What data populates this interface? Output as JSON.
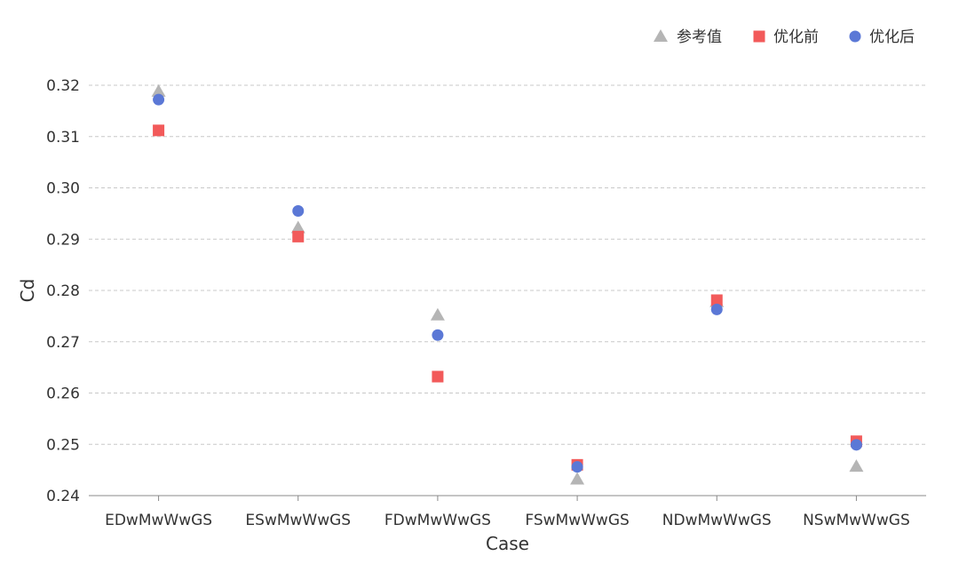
{
  "chart_data": {
    "type": "scatter",
    "title": "",
    "xlabel": "Case",
    "ylabel": "Cd",
    "categories": [
      "EDwMwWwGS",
      "ESwMwWwGS",
      "FDwMwWwGS",
      "FSwMwWwGS",
      "NDwMwWwGS",
      "NSwMwWwGS"
    ],
    "ylim": [
      0.24,
      0.32
    ],
    "yticks": [
      0.24,
      0.25,
      0.26,
      0.27,
      0.28,
      0.29,
      0.3,
      0.31,
      0.32
    ],
    "ytick_labels": [
      "0.24",
      "0.25",
      "0.26",
      "0.27",
      "0.28",
      "0.29",
      "0.30",
      "0.31",
      "0.32"
    ],
    "grid": true,
    "legend_position": "top-right",
    "series": [
      {
        "name": "参考值",
        "marker": "triangle",
        "color": "#b5b5b5",
        "values": [
          0.3188,
          0.2922,
          0.2752,
          0.2432,
          0.2778,
          0.2457
        ]
      },
      {
        "name": "优化前",
        "marker": "square",
        "color": "#f25a5a",
        "values": [
          0.3112,
          0.2905,
          0.2632,
          0.246,
          0.2781,
          0.2506
        ]
      },
      {
        "name": "优化后",
        "marker": "circle",
        "color": "#5b78d6",
        "values": [
          0.3172,
          0.2955,
          0.2713,
          0.2456,
          0.2763,
          0.2499
        ]
      }
    ]
  }
}
